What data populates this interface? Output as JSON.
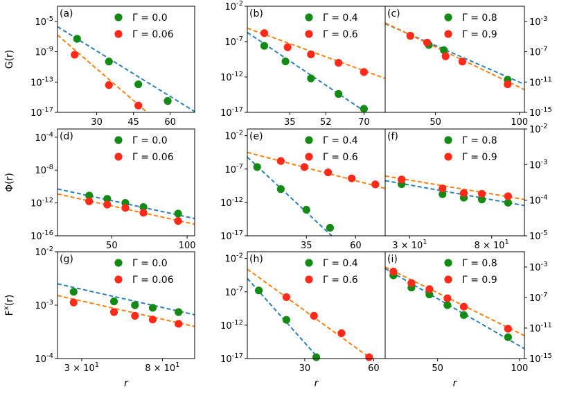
{
  "colors": {
    "green": "#138a13",
    "red": "#ff2a1a",
    "blue_fit": "#2a7fb8",
    "orange_fit": "#ff7f0e"
  },
  "chart_data": [
    {
      "id": "a",
      "panel_label": "(a)",
      "type": "scatter",
      "scale_y": "log",
      "ylabel": "G(r)",
      "xlabel": "",
      "xlim": [
        14,
        70
      ],
      "ylim": [
        -17,
        -3
      ],
      "xticks": [
        {
          "v": 30,
          "t": "30"
        },
        {
          "v": 45,
          "t": "45"
        },
        {
          "v": 60,
          "t": "60"
        }
      ],
      "yticks": [
        {
          "v": -5,
          "t": "10^-5"
        },
        {
          "v": -9,
          "t": "10^-9"
        },
        {
          "v": -13,
          "t": "10^-13"
        },
        {
          "v": -17,
          "t": "10^-17"
        }
      ],
      "series": [
        {
          "name": "Γ = 0.0",
          "color": "green",
          "points": [
            [
              22,
              -7.3
            ],
            [
              35,
              -10.3
            ],
            [
              47,
              -13.3
            ],
            [
              59,
              -15.5
            ]
          ],
          "fit": [
            [
              14,
              -5.7
            ],
            [
              70,
              -16.9
            ]
          ]
        },
        {
          "name": "Γ = 0.06",
          "color": "red",
          "points": [
            [
              21,
              -9.4
            ],
            [
              35,
              -13.4
            ],
            [
              47,
              -16.1
            ]
          ],
          "fit": [
            [
              14,
              -6.8
            ],
            [
              56,
              -18.5
            ]
          ]
        }
      ]
    },
    {
      "id": "b",
      "panel_label": "(b)",
      "type": "scatter",
      "scale_y": "log",
      "ylabel": "",
      "xlabel": "",
      "xlim": [
        15,
        80
      ],
      "ylim": [
        -17,
        -2
      ],
      "xticks": [
        {
          "v": 35,
          "t": "35"
        },
        {
          "v": 52,
          "t": "52"
        },
        {
          "v": 70,
          "t": "70"
        }
      ],
      "yticks": [
        {
          "v": -2,
          "t": "10^-2"
        },
        {
          "v": -7,
          "t": "10^-7"
        },
        {
          "v": -12,
          "t": "10^-12"
        },
        {
          "v": -17,
          "t": "10^-17"
        }
      ],
      "series": [
        {
          "name": "Γ = 0.4",
          "color": "green",
          "points": [
            [
              23,
              -7.6
            ],
            [
              33,
              -9.8
            ],
            [
              45,
              -12.2
            ],
            [
              58,
              -14.4
            ],
            [
              70,
              -16.5
            ]
          ],
          "fit": [
            [
              15,
              -5.7
            ],
            [
              74,
              -17.6
            ]
          ]
        },
        {
          "name": "Γ = 0.6",
          "color": "red",
          "points": [
            [
              23,
              -5.8
            ],
            [
              34,
              -7.8
            ],
            [
              45,
              -8.8
            ],
            [
              58,
              -10.0
            ],
            [
              70,
              -11.3
            ]
          ],
          "fit": [
            [
              15,
              -5.1
            ],
            [
              80,
              -12.2
            ]
          ]
        }
      ]
    },
    {
      "id": "c",
      "panel_label": "(c)",
      "type": "scatter",
      "scale_y": "log",
      "ylabel": "",
      "xlabel": "",
      "xlim": [
        20,
        103
      ],
      "ylim": [
        -15,
        -1
      ],
      "xticks": [
        {
          "v": 50,
          "t": "50"
        },
        {
          "v": 100,
          "t": "100"
        }
      ],
      "yticks": [
        {
          "v": -3,
          "t": "10^-3"
        },
        {
          "v": -7,
          "t": "10^-7"
        },
        {
          "v": -11,
          "t": "10^-11"
        },
        {
          "v": -15,
          "t": "10^-15"
        }
      ],
      "series": [
        {
          "name": "Γ = 0.8",
          "color": "green",
          "points": [
            [
              35,
              -4.9
            ],
            [
              46,
              -6.1
            ],
            [
              55,
              -6.8
            ],
            [
              93,
              -10.7
            ]
          ],
          "fit": [
            [
              20,
              -3.3
            ],
            [
              103,
              -11.3
            ]
          ]
        },
        {
          "name": "Γ = 0.9",
          "color": "red",
          "points": [
            [
              35,
              -4.9
            ],
            [
              45,
              -5.8
            ],
            [
              56,
              -7.6
            ],
            [
              66,
              -8.3
            ],
            [
              93,
              -11.3
            ]
          ],
          "fit": [
            [
              20,
              -3.2
            ],
            [
              103,
              -12.0
            ]
          ]
        }
      ]
    },
    {
      "id": "d",
      "panel_label": "(d)",
      "type": "scatter",
      "scale_y": "log",
      "ylabel": "Φ(r)",
      "xlabel": "",
      "xlim": [
        14,
        105
      ],
      "ylim": [
        -16,
        -3
      ],
      "xticks": [
        {
          "v": 50,
          "t": "50"
        },
        {
          "v": 100,
          "t": "100"
        }
      ],
      "yticks": [
        {
          "v": -4,
          "t": "10^-4"
        },
        {
          "v": -8,
          "t": "10^-8"
        },
        {
          "v": -12,
          "t": "10^-12"
        },
        {
          "v": -16,
          "t": "10^-16"
        }
      ],
      "series": [
        {
          "name": "Γ = 0.0",
          "color": "green",
          "points": [
            [
              35,
              -11.1
            ],
            [
              47,
              -11.5
            ],
            [
              59,
              -12.0
            ],
            [
              71,
              -12.5
            ],
            [
              94,
              -13.3
            ]
          ],
          "fit": [
            [
              14,
              -10.3
            ],
            [
              105,
              -13.9
            ]
          ]
        },
        {
          "name": "Γ = 0.06",
          "color": "red",
          "points": [
            [
              35,
              -11.8
            ],
            [
              47,
              -12.2
            ],
            [
              59,
              -12.6
            ],
            [
              71,
              -13.2
            ],
            [
              94,
              -14.2
            ]
          ],
          "fit": [
            [
              14,
              -10.9
            ],
            [
              105,
              -14.6
            ]
          ]
        }
      ]
    },
    {
      "id": "e",
      "panel_label": "(e)",
      "type": "scatter",
      "scale_y": "log",
      "ylabel": "",
      "xlabel": "",
      "xlim": [
        5,
        75
      ],
      "ylim": [
        -17,
        -1
      ],
      "xticks": [
        {
          "v": 35,
          "t": "35"
        },
        {
          "v": 60,
          "t": "60"
        }
      ],
      "yticks": [
        {
          "v": -2,
          "t": "10^-2"
        },
        {
          "v": -7,
          "t": "10^-7"
        },
        {
          "v": -12,
          "t": "10^-12"
        },
        {
          "v": -17,
          "t": "10^-17"
        }
      ],
      "series": [
        {
          "name": "Γ = 0.4",
          "color": "green",
          "points": [
            [
              10,
              -6.7
            ],
            [
              22,
              -10.0
            ],
            [
              35,
              -13.1
            ],
            [
              47,
              -15.8
            ]
          ],
          "fit": [
            [
              5,
              -5.2
            ],
            [
              50,
              -17.6
            ]
          ]
        },
        {
          "name": "Γ = 0.6",
          "color": "red",
          "points": [
            [
              22,
              -5.8
            ],
            [
              34,
              -6.7
            ],
            [
              46,
              -7.5
            ],
            [
              58,
              -8.4
            ],
            [
              70,
              -9.3
            ]
          ],
          "fit": [
            [
              5,
              -4.5
            ],
            [
              75,
              -9.9
            ]
          ]
        }
      ]
    },
    {
      "id": "f",
      "panel_label": "(f)",
      "type": "scatter",
      "scale_y": "log",
      "ylabel": "",
      "xlabel": "",
      "xlim": [
        15,
        100
      ],
      "ylim": [
        -5,
        -2
      ],
      "xticks": [
        {
          "v": 30,
          "t": "3 × 10^1"
        },
        {
          "v": 80,
          "t": "8 × 10^1"
        }
      ],
      "yticks": [
        {
          "v": -2,
          "t": "10^-2"
        },
        {
          "v": -3,
          "t": "10^-3"
        },
        {
          "v": -4,
          "t": "10^-4"
        },
        {
          "v": -5,
          "t": "10^-5"
        }
      ],
      "series": [
        {
          "name": "Γ = 0.8",
          "color": "green",
          "points": [
            [
              25,
              -3.55
            ],
            [
              50,
              -3.83
            ],
            [
              63,
              -3.93
            ],
            [
              74,
              -3.98
            ],
            [
              90,
              -4.07
            ]
          ],
          "fit": [
            [
              15,
              -3.45
            ],
            [
              100,
              -4.15
            ]
          ]
        },
        {
          "name": "Γ = 0.9",
          "color": "red",
          "points": [
            [
              25,
              -3.42
            ],
            [
              50,
              -3.67
            ],
            [
              63,
              -3.8
            ],
            [
              74,
              -3.82
            ],
            [
              90,
              -3.89
            ]
          ],
          "fit": [
            [
              15,
              -3.32
            ],
            [
              100,
              -3.98
            ]
          ]
        }
      ]
    },
    {
      "id": "g",
      "panel_label": "(g)",
      "type": "scatter",
      "scale_y": "log",
      "ylabel": "F^x(r)",
      "xlabel": "r",
      "xlim": [
        15,
        100
      ],
      "ylim": [
        -4,
        -2
      ],
      "xticks": [
        {
          "v": 30,
          "t": "3 × 10^1"
        },
        {
          "v": 80,
          "t": "8 × 10^1"
        }
      ],
      "yticks": [
        {
          "v": -2,
          "t": "10^-2"
        },
        {
          "v": -3,
          "t": "10^-3"
        },
        {
          "v": -4,
          "t": "10^-4"
        }
      ],
      "series": [
        {
          "name": "Γ = 0.0",
          "color": "green",
          "points": [
            [
              25,
              -2.75
            ],
            [
              50,
              -2.93
            ],
            [
              63,
              -3.0
            ],
            [
              74,
              -3.05
            ],
            [
              90,
              -3.13
            ]
          ],
          "fit": [
            [
              15,
              -2.6
            ],
            [
              100,
              -3.18
            ]
          ]
        },
        {
          "name": "Γ = 0.06",
          "color": "red",
          "points": [
            [
              25,
              -2.95
            ],
            [
              50,
              -3.13
            ],
            [
              63,
              -3.2
            ],
            [
              74,
              -3.27
            ],
            [
              90,
              -3.35
            ]
          ],
          "fit": [
            [
              15,
              -2.82
            ],
            [
              100,
              -3.4
            ]
          ]
        }
      ]
    },
    {
      "id": "h",
      "panel_label": "(h)",
      "type": "scatter",
      "scale_y": "log",
      "ylabel": "",
      "xlabel": "r",
      "xlim": [
        5,
        65
      ],
      "ylim": [
        -17,
        -1
      ],
      "xticks": [
        {
          "v": 30,
          "t": "30"
        },
        {
          "v": 60,
          "t": "60"
        }
      ],
      "yticks": [
        {
          "v": -2,
          "t": "10^-2"
        },
        {
          "v": -7,
          "t": "10^-7"
        },
        {
          "v": -12,
          "t": "10^-12"
        },
        {
          "v": -17,
          "t": "10^-17"
        }
      ],
      "series": [
        {
          "name": "Γ = 0.4",
          "color": "green",
          "points": [
            [
              10,
              -6.8
            ],
            [
              22,
              -11.2
            ],
            [
              35,
              -16.8
            ]
          ],
          "fit": [
            [
              5,
              -5.0
            ],
            [
              40,
              -18.5
            ]
          ]
        },
        {
          "name": "Γ = 0.6",
          "color": "red",
          "points": [
            [
              22,
              -7.8
            ],
            [
              34,
              -10.6
            ],
            [
              46,
              -13.2
            ],
            [
              58,
              -16.8
            ]
          ],
          "fit": [
            [
              5,
              -3.6
            ],
            [
              62,
              -17.8
            ]
          ]
        }
      ]
    },
    {
      "id": "i",
      "panel_label": "(i)",
      "type": "scatter",
      "scale_y": "log",
      "ylabel": "",
      "xlabel": "r",
      "xlim": [
        18,
        103
      ],
      "ylim": [
        -15,
        -1
      ],
      "xticks": [
        {
          "v": 50,
          "t": "50"
        },
        {
          "v": 100,
          "t": "100"
        }
      ],
      "yticks": [
        {
          "v": -3,
          "t": "10^-3"
        },
        {
          "v": -7,
          "t": "10^-7"
        },
        {
          "v": -11,
          "t": "10^-11"
        },
        {
          "v": -15,
          "t": "10^-15"
        }
      ],
      "series": [
        {
          "name": "Γ = 0.8",
          "color": "green",
          "points": [
            [
              23,
              -4.1
            ],
            [
              34,
              -5.7
            ],
            [
              45,
              -6.6
            ],
            [
              56,
              -8.0
            ],
            [
              66,
              -9.3
            ],
            [
              93,
              -12.2
            ]
          ],
          "fit": [
            [
              18,
              -3.2
            ],
            [
              103,
              -13.7
            ]
          ]
        },
        {
          "name": "Γ = 0.9",
          "color": "red",
          "points": [
            [
              23,
              -3.6
            ],
            [
              34,
              -5.1
            ],
            [
              45,
              -5.9
            ],
            [
              56,
              -7.1
            ],
            [
              66,
              -8.2
            ],
            [
              93,
              -11.1
            ]
          ],
          "fit": [
            [
              18,
              -3.0
            ],
            [
              103,
              -12.0
            ]
          ]
        }
      ]
    }
  ]
}
